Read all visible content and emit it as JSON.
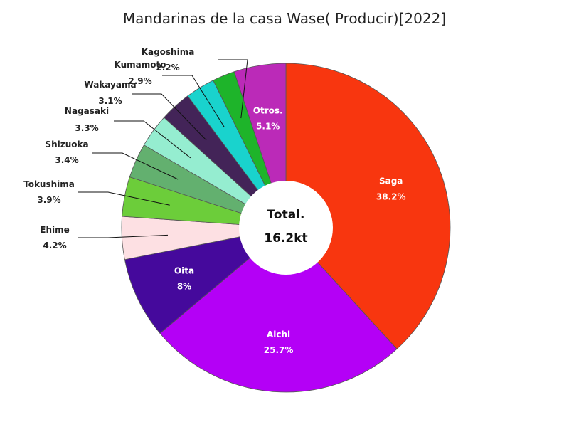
{
  "chart_data": {
    "type": "pie",
    "title": "Mandarinas de la casa Wase( Producir)[2022]",
    "center_label": "Total.",
    "center_value": "16.2kt",
    "slices": [
      {
        "label": "Saga",
        "value": 38.2,
        "value_label": "38.2%",
        "color": "#f8360f",
        "label_pos": "inside"
      },
      {
        "label": "Aichi",
        "value": 25.7,
        "value_label": "25.7%",
        "color": "#b400f6",
        "label_pos": "inside"
      },
      {
        "label": "Oita",
        "value": 8,
        "value_label": "8%",
        "color": "#45099c",
        "label_pos": "inside"
      },
      {
        "label": "Ehime",
        "value": 4.2,
        "value_label": "4.2%",
        "color": "#fde0e3",
        "label_pos": "outside"
      },
      {
        "label": "Tokushima",
        "value": 3.9,
        "value_label": "3.9%",
        "color": "#6ccd3a",
        "label_pos": "outside"
      },
      {
        "label": "Shizuoka",
        "value": 3.4,
        "value_label": "3.4%",
        "color": "#63b06f",
        "label_pos": "outside"
      },
      {
        "label": "Nagasaki",
        "value": 3.3,
        "value_label": "3.3%",
        "color": "#95edd0",
        "label_pos": "outside"
      },
      {
        "label": "Wakayama",
        "value": 3.1,
        "value_label": "3.1%",
        "color": "#432458",
        "label_pos": "outside"
      },
      {
        "label": "Kumamoto",
        "value": 2.9,
        "value_label": "2.9%",
        "color": "#19d3cd",
        "label_pos": "outside"
      },
      {
        "label": "Kagoshima",
        "value": 2.2,
        "value_label": "2.2%",
        "color": "#1eb42a",
        "label_pos": "outside"
      },
      {
        "label": "Otros.",
        "value": 5.1,
        "value_label": "5.1%",
        "color": "#bb2ab8",
        "label_pos": "inside"
      }
    ]
  }
}
